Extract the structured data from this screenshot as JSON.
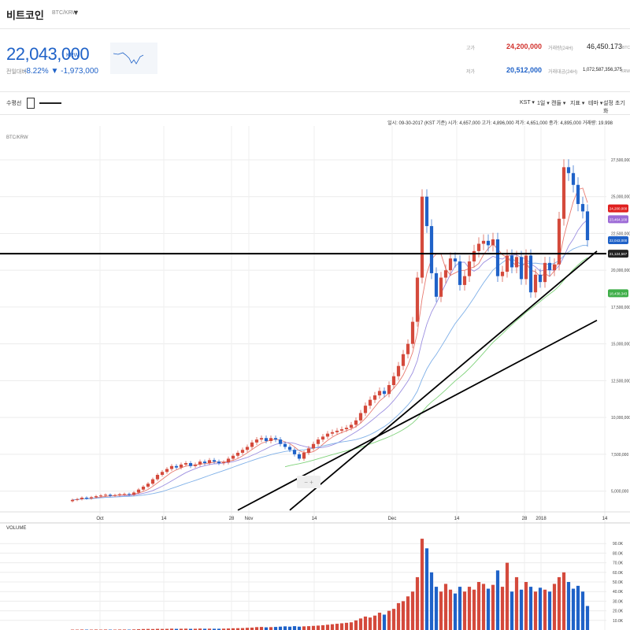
{
  "header": {
    "coin_name": "비트코인",
    "pair": "BTC/KRW",
    "caret": "▼"
  },
  "ticker": {
    "price": "22,043,000",
    "price_unit": "KRW",
    "change_label": "전일대비",
    "change": "-8.22% ▼ -1,973,000",
    "stats": [
      {
        "label": "고가",
        "value": "24,200,000",
        "color": "#d1312c"
      },
      {
        "label": "거래량(24H)",
        "value": "46,450.173",
        "unit": "BTC",
        "color": "#333333"
      },
      {
        "label": "저가",
        "value": "20,512,000",
        "color": "#1f62c8"
      },
      {
        "label": "거래대금(24H)",
        "value": "1,072,587,356,375",
        "unit": "KRW",
        "color": "#333333"
      }
    ]
  },
  "toolbar": {
    "left": [
      "수평선"
    ],
    "right": [
      "KST ▾",
      "1일 ▾",
      "캔들 ▾",
      "지표 ▾",
      "테마 ▾",
      "설정 초기화"
    ]
  },
  "chart_data": {
    "type": "candlestick",
    "info_bar": "일시: 09-30-2017 (KST 기준) 시가: 4,657,000 고가: 4,896,000 저가: 4,651,000 종가: 4,895,000 거래량: 19.998",
    "panel_label": "BTC/KRW",
    "x_tick_labels": [
      "Oct",
      "14",
      "28",
      "Nov",
      "14",
      "Dec",
      "14",
      "28",
      "2018",
      "14"
    ],
    "y_ticks": [
      5000000,
      7500000,
      10000000,
      12500000,
      15000000,
      17500000,
      20000000,
      22500000,
      25000000,
      27500000
    ],
    "y_tick_labels": [
      "5,000,000",
      "7,500,000",
      "10,000,000",
      "12,500,000",
      "15,000,000",
      "17,500,000",
      "20,000,000",
      "22,500,000",
      "25,000,000",
      "27,500,000"
    ],
    "ylim": [
      3800000,
      29800000
    ],
    "close": [
      4400000,
      4450000,
      4550000,
      4500000,
      4580000,
      4650000,
      4700000,
      4750000,
      4680000,
      4720000,
      4780000,
      4800000,
      4750000,
      4900000,
      5100000,
      5300000,
      5500000,
      5800000,
      6100000,
      6300000,
      6500000,
      6700000,
      6600000,
      6800000,
      6900000,
      6700000,
      6800000,
      7000000,
      6900000,
      7100000,
      7000000,
      6900000,
      6950000,
      7200000,
      7400000,
      7600000,
      7800000,
      8000000,
      8300000,
      8500000,
      8600000,
      8400000,
      8600000,
      8500000,
      8200000,
      8000000,
      7800000,
      7500000,
      7200000,
      7600000,
      7900000,
      8200000,
      8500000,
      8700000,
      8900000,
      9000000,
      9100000,
      9200000,
      9300000,
      9500000,
      9800000,
      10300000,
      10800000,
      11200000,
      11500000,
      11800000,
      11600000,
      12200000,
      12800000,
      13500000,
      14300000,
      15000000,
      16500000,
      19500000,
      25000000,
      23000000,
      19800000,
      18200000,
      19500000,
      20000000,
      20800000,
      20600000,
      19000000,
      19600000,
      20600000,
      21300000,
      21800000,
      22000000,
      21700000,
      22100000,
      19600000,
      19900000,
      21000000,
      20200000,
      20900000,
      19400000,
      21000000,
      18500000,
      19700000,
      19200000,
      20500000,
      20000000,
      20400000,
      23500000,
      27000000,
      26600000,
      25800000,
      24500000,
      24000000,
      22043000
    ],
    "volume_ticks": [
      10,
      20,
      30,
      40,
      50,
      60,
      70,
      80,
      90
    ],
    "volume_tick_labels": [
      "10.0K",
      "20.0K",
      "30.0K",
      "40.0K",
      "50.0K",
      "60.0K",
      "70.0K",
      "80.0K",
      "90.0K"
    ],
    "volume": [
      0.4,
      0.4,
      0.5,
      0.4,
      0.4,
      0.5,
      0.4,
      0.5,
      0.4,
      0.4,
      0.5,
      0.5,
      0.4,
      0.6,
      0.8,
      1.0,
      1.1,
      1.0,
      1.2,
      1.1,
      1.2,
      1.4,
      1.2,
      1.3,
      1.4,
      1.2,
      1.3,
      1.5,
      1.3,
      1.4,
      1.3,
      1.3,
      1.4,
      1.6,
      1.8,
      1.9,
      2.0,
      2.3,
      2.5,
      3.0,
      3.2,
      2.8,
      3.0,
      3.2,
      3.5,
      3.8,
      3.5,
      4.0,
      3.5,
      3.8,
      4.0,
      4.3,
      4.6,
      5.0,
      5.5,
      6.0,
      6.5,
      7.0,
      7.5,
      8.0,
      10.0,
      12.0,
      14.0,
      13.0,
      15.0,
      18.0,
      16.0,
      20.0,
      22.0,
      28.0,
      30.0,
      35.0,
      40.0,
      55.0,
      95.0,
      85.0,
      60.0,
      45.0,
      40.0,
      48.0,
      42.0,
      38.0,
      45.0,
      40.0,
      45.0,
      42.0,
      50.0,
      48.0,
      43.0,
      47.0,
      62.0,
      45.0,
      70.0,
      40.0,
      55.0,
      42.0,
      50.0,
      45.0,
      40.0,
      44.0,
      42.0,
      40.0,
      48.0,
      55.0,
      60.0,
      50.0,
      43.0,
      46.0,
      40.0,
      25.0
    ],
    "price_flags": [
      {
        "label": "24,200,000",
        "value": 24200000,
        "color": "#e0201f"
      },
      {
        "label": "23,464,100",
        "value": 23464100,
        "color": "#9c6ad6"
      },
      {
        "label": "22,043,000",
        "value": 22043000,
        "color": "#1f62c8"
      },
      {
        "label": "21,124,567",
        "value": 21124567,
        "color": "#222222"
      },
      {
        "label": "18,438,343",
        "value": 18438343,
        "color": "#3fae49"
      }
    ],
    "horizontal_line": 21124567,
    "trend_lines": [
      {
        "x1_index": 46,
        "x2_index": 111,
        "y1": 3700000,
        "y2": 21300000
      },
      {
        "x1_index": 35,
        "x2_index": 111,
        "y1": 3700000,
        "y2": 16600000
      }
    ],
    "zoom_control": "− +",
    "volume_label": "VOLUME",
    "colors": {
      "up": "#d44a3c",
      "down": "#1f62c8",
      "ma_green": "#7fd27a",
      "ma_red": "#e87a70",
      "ma_purple": "#9c8fe0",
      "ma_blue": "#7fb0e8"
    }
  }
}
